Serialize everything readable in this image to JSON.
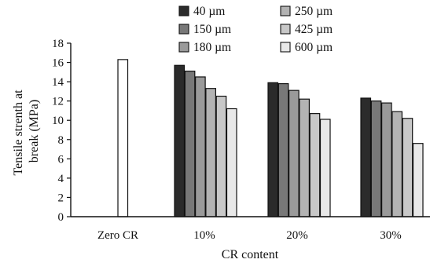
{
  "chart_data": {
    "type": "bar",
    "xlabel": "CR content",
    "ylabel_lines": [
      "Tensile strenth at",
      "break (MPa)"
    ],
    "ylim": [
      0,
      18
    ],
    "yticks": [
      0,
      2,
      4,
      6,
      8,
      10,
      12,
      14,
      16,
      18
    ],
    "legend_position": "top",
    "categories": [
      {
        "label": "Zero CR",
        "bars": [
          {
            "series": "Zero CR",
            "value": 16.3,
            "color": "#ffffff"
          }
        ]
      },
      {
        "label": "10%",
        "bars": [
          {
            "series": "40 µm",
            "value": 15.7,
            "color": "#2b2b2b"
          },
          {
            "series": "150 µm",
            "value": 15.1,
            "color": "#787878"
          },
          {
            "series": "180 µm",
            "value": 14.5,
            "color": "#9a9a9a"
          },
          {
            "series": "250 µm",
            "value": 13.3,
            "color": "#b3b3b3"
          },
          {
            "series": "425 µm",
            "value": 12.5,
            "color": "#c8c8c8"
          },
          {
            "series": "600 µm",
            "value": 11.2,
            "color": "#e8e8e8"
          }
        ]
      },
      {
        "label": "20%",
        "bars": [
          {
            "series": "40 µm",
            "value": 13.9,
            "color": "#2b2b2b"
          },
          {
            "series": "150 µm",
            "value": 13.8,
            "color": "#787878"
          },
          {
            "series": "180 µm",
            "value": 13.1,
            "color": "#9a9a9a"
          },
          {
            "series": "250 µm",
            "value": 12.2,
            "color": "#b3b3b3"
          },
          {
            "series": "425 µm",
            "value": 10.7,
            "color": "#c8c8c8"
          },
          {
            "series": "600 µm",
            "value": 10.1,
            "color": "#e8e8e8"
          }
        ]
      },
      {
        "label": "30%",
        "bars": [
          {
            "series": "40 µm",
            "value": 12.3,
            "color": "#2b2b2b"
          },
          {
            "series": "150 µm",
            "value": 12.0,
            "color": "#787878"
          },
          {
            "series": "180 µm",
            "value": 11.8,
            "color": "#9a9a9a"
          },
          {
            "series": "250 µm",
            "value": 10.9,
            "color": "#b3b3b3"
          },
          {
            "series": "425 µm",
            "value": 10.2,
            "color": "#c8c8c8"
          },
          {
            "series": "600 µm",
            "value": 7.6,
            "color": "#e8e8e8"
          }
        ]
      }
    ],
    "legend": [
      {
        "name": "40 µm",
        "color": "#2b2b2b"
      },
      {
        "name": "150 µm",
        "color": "#787878"
      },
      {
        "name": "180 µm",
        "color": "#9a9a9a"
      },
      {
        "name": "250 µm",
        "color": "#b3b3b3"
      },
      {
        "name": "425 µm",
        "color": "#c8c8c8"
      },
      {
        "name": "600 µm",
        "color": "#e8e8e8"
      }
    ]
  }
}
